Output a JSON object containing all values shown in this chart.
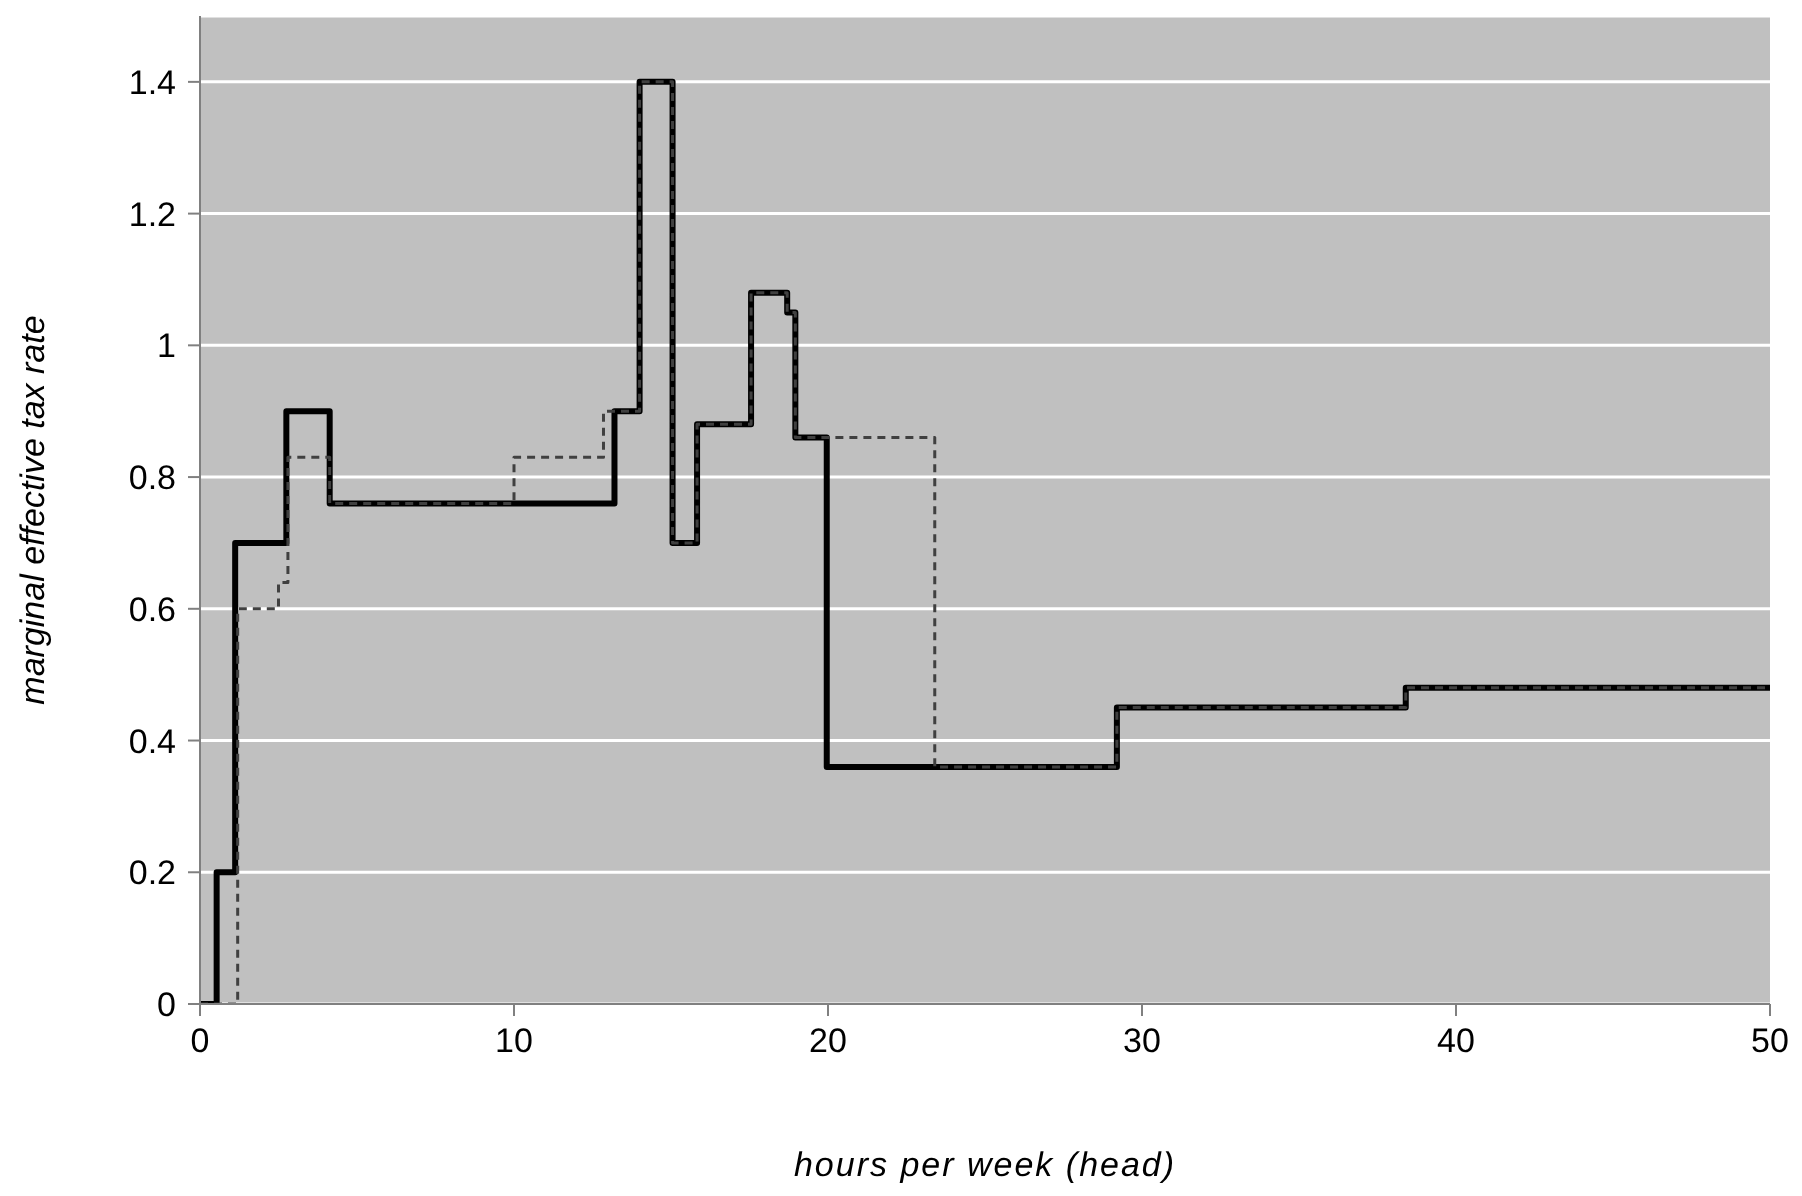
{
  "chart_data": {
    "type": "step",
    "xlabel": "hours per week (head)",
    "ylabel": "marginal effective tax rate",
    "xlim": [
      0,
      50
    ],
    "xticks": [
      0,
      10,
      20,
      30,
      40,
      50
    ],
    "ylim": [
      0,
      1.5
    ],
    "yticks": [
      0,
      0.2,
      0.4,
      0.6,
      0.8,
      1,
      1.2,
      1.4
    ],
    "grid": "y",
    "legend": false,
    "series": [
      {
        "color": "#000000",
        "line_style": "solid",
        "x": [
          0,
          0.53,
          1.12,
          2.75,
          4.13,
          13.2,
          14.0,
          15.05,
          15.83,
          17.55,
          18.7,
          18.96,
          19.96,
          29.2,
          38.4,
          50
        ],
        "values": [
          0,
          0.2,
          0.7,
          0.9,
          0.76,
          0.9,
          1.4,
          0.7,
          0.88,
          1.08,
          1.05,
          0.86,
          0.36,
          0.45,
          0.48,
          0.48
        ]
      },
      {
        "color": "#404040",
        "line_style": "dashed",
        "x": [
          0,
          1.2,
          2.5,
          2.8,
          4.13,
          10.0,
          12.85,
          14.0,
          15.05,
          15.83,
          17.55,
          18.7,
          18.96,
          23.4,
          29.2,
          38.4,
          50
        ],
        "values": [
          0,
          0.6,
          0.64,
          0.83,
          0.76,
          0.83,
          0.9,
          1.4,
          0.7,
          0.88,
          1.08,
          1.05,
          0.86,
          0.36,
          0.45,
          0.48,
          0.48
        ]
      }
    ]
  }
}
